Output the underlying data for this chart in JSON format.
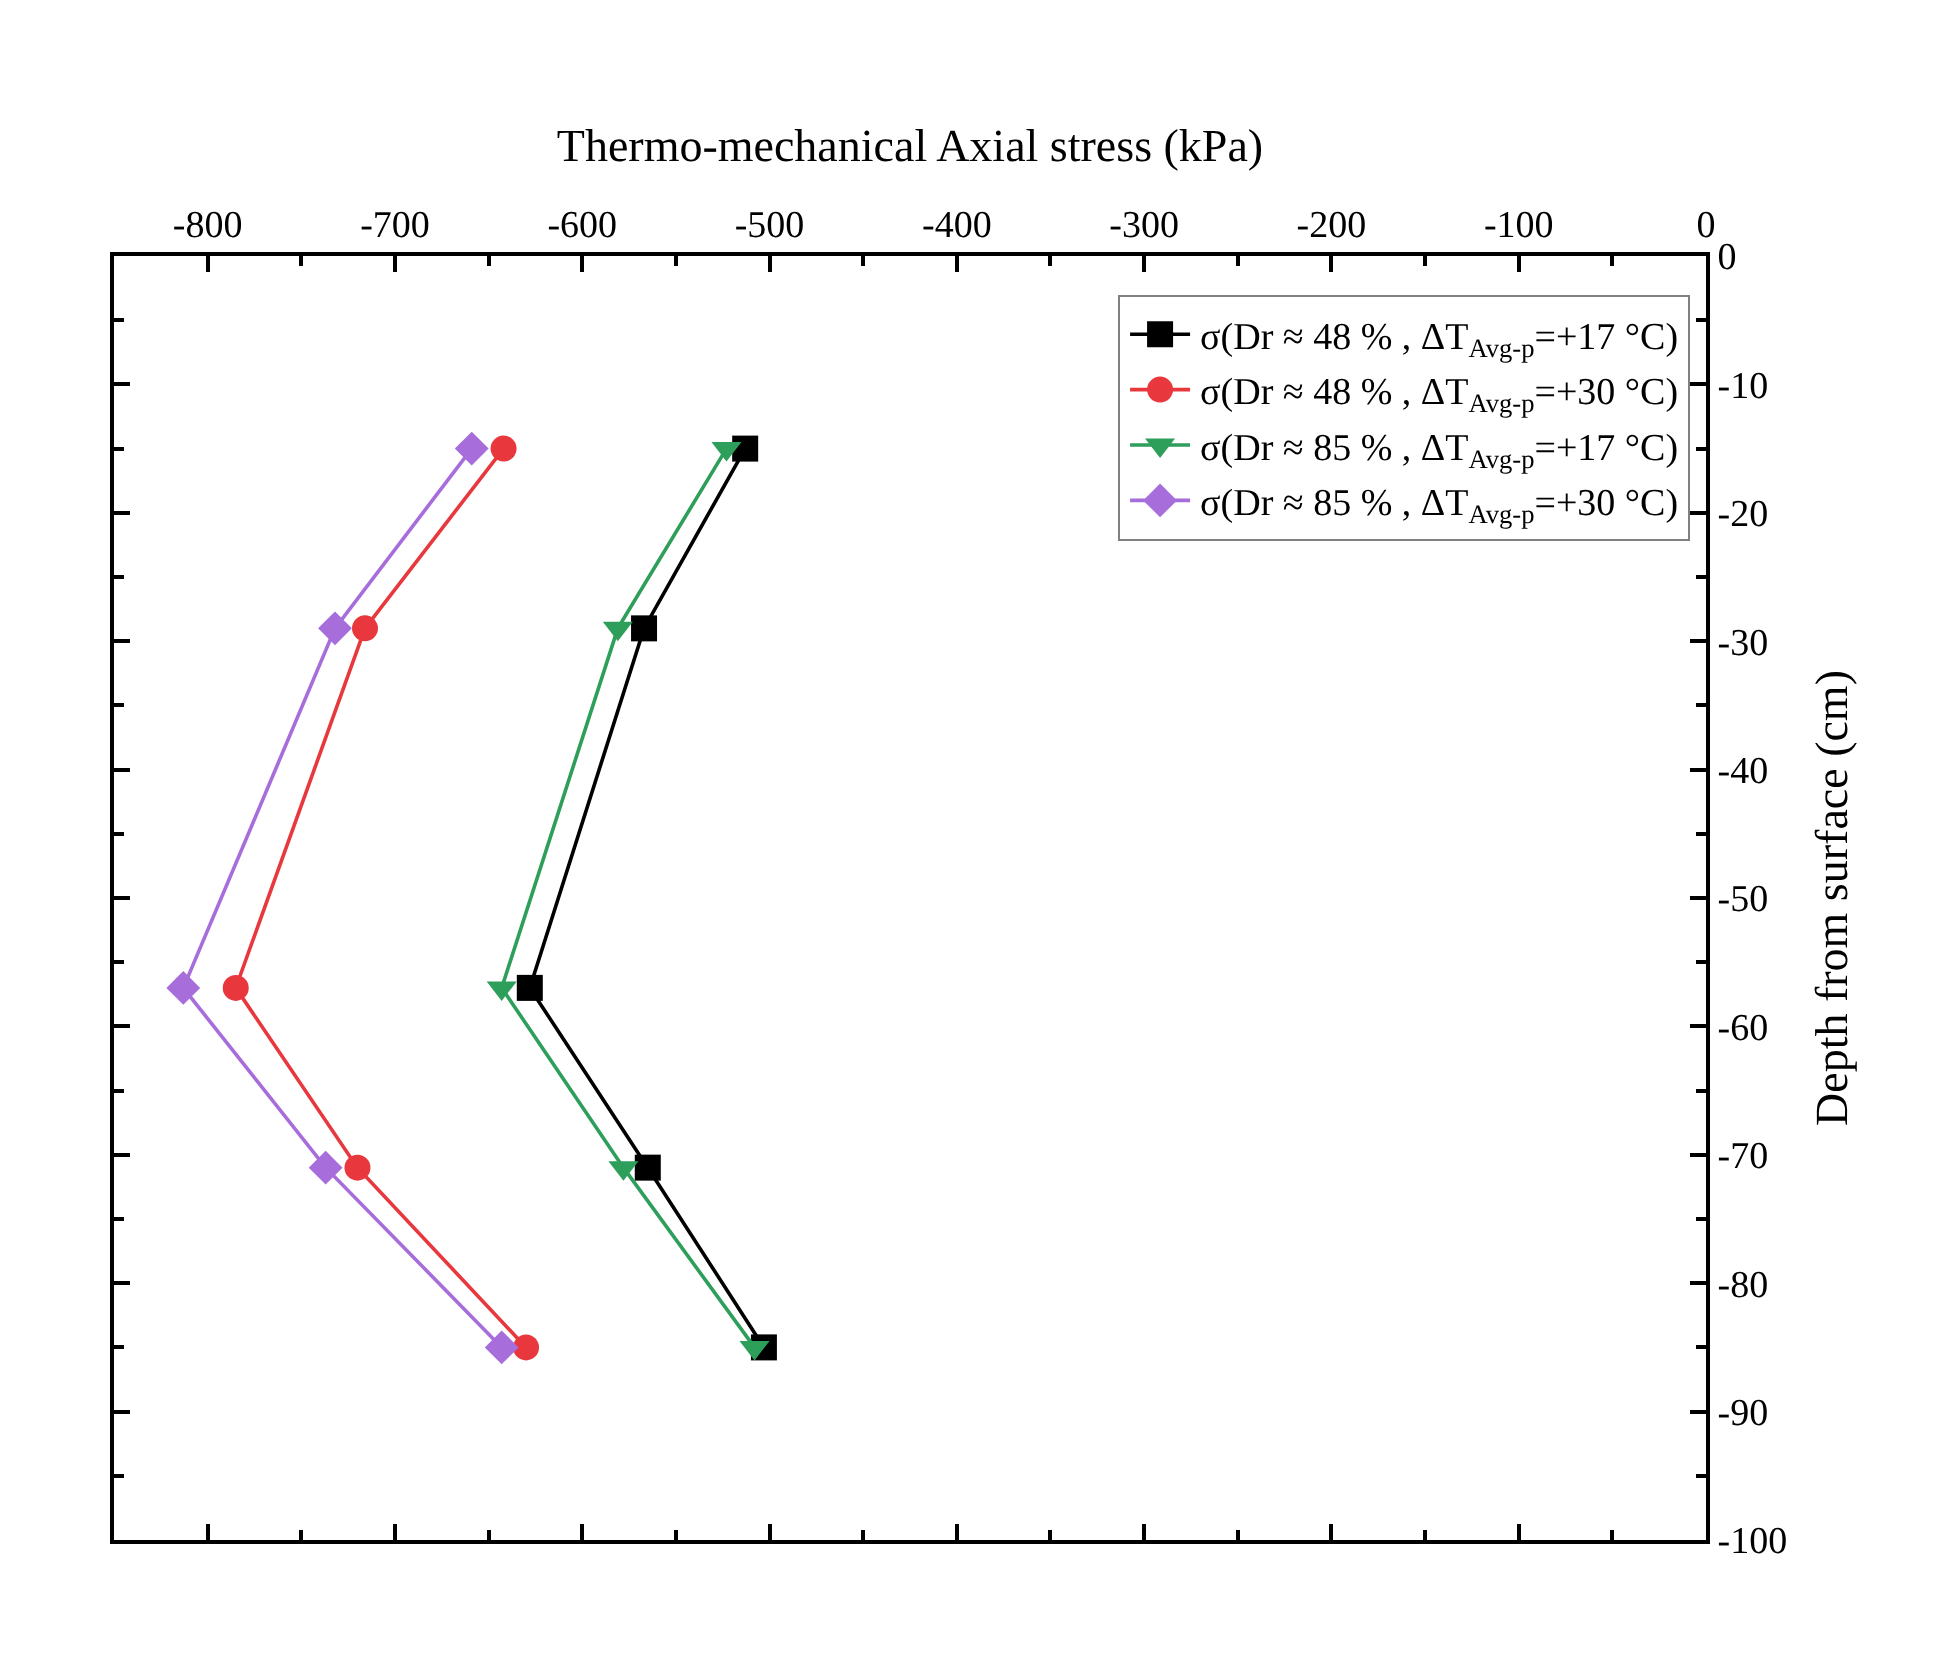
{
  "chart_data": {
    "type": "line",
    "xlabel": "Thermo-mechanical Axial stress (kPa)",
    "ylabel": "Depth from surface (cm)",
    "xlim": [
      -850,
      0
    ],
    "xticks": [
      -800,
      -700,
      -600,
      -500,
      -400,
      -300,
      -200,
      -100,
      0
    ],
    "ylim": [
      -100,
      0
    ],
    "yticks": [
      0,
      -10,
      -20,
      -30,
      -40,
      -50,
      -60,
      -70,
      -80,
      -90,
      -100
    ],
    "grid": false,
    "legend": "top right",
    "line_style": "solid",
    "series": [
      {
        "name": "σ(Dr ≈ 48 % , ΔT$_{Avg-p}$=+17 °C)",
        "color": "#000000",
        "marker": "square",
        "x": [
          -513,
          -567,
          -628,
          -565,
          -503
        ],
        "values": [
          -15,
          -29,
          -57,
          -71,
          -85
        ]
      },
      {
        "name": "σ(Dr ≈ 48 % , ΔT$_{Avg-p}$=+30 °C)",
        "color": "#e8383d",
        "marker": "circle",
        "x": [
          -642,
          -716,
          -785,
          -720,
          -630
        ],
        "values": [
          -15,
          -29,
          -57,
          -71,
          -85
        ]
      },
      {
        "name": "σ(Dr ≈ 85 % , ΔT$_{Avg-p}$=+17 °C)",
        "color": "#2e9e5b",
        "marker": "triangle",
        "x": [
          -523,
          -581,
          -643,
          -578,
          -508
        ],
        "values": [
          -15,
          -29,
          -57,
          -71,
          -85
        ]
      },
      {
        "name": "σ(Dr ≈ 85 % , ΔT$_{Avg-p}$=+30 °C)",
        "color": "#a66ddb",
        "marker": "diamond",
        "x": [
          -659,
          -732,
          -813,
          -737,
          -643
        ],
        "values": [
          -15,
          -29,
          -57,
          -71,
          -85
        ]
      }
    ]
  }
}
